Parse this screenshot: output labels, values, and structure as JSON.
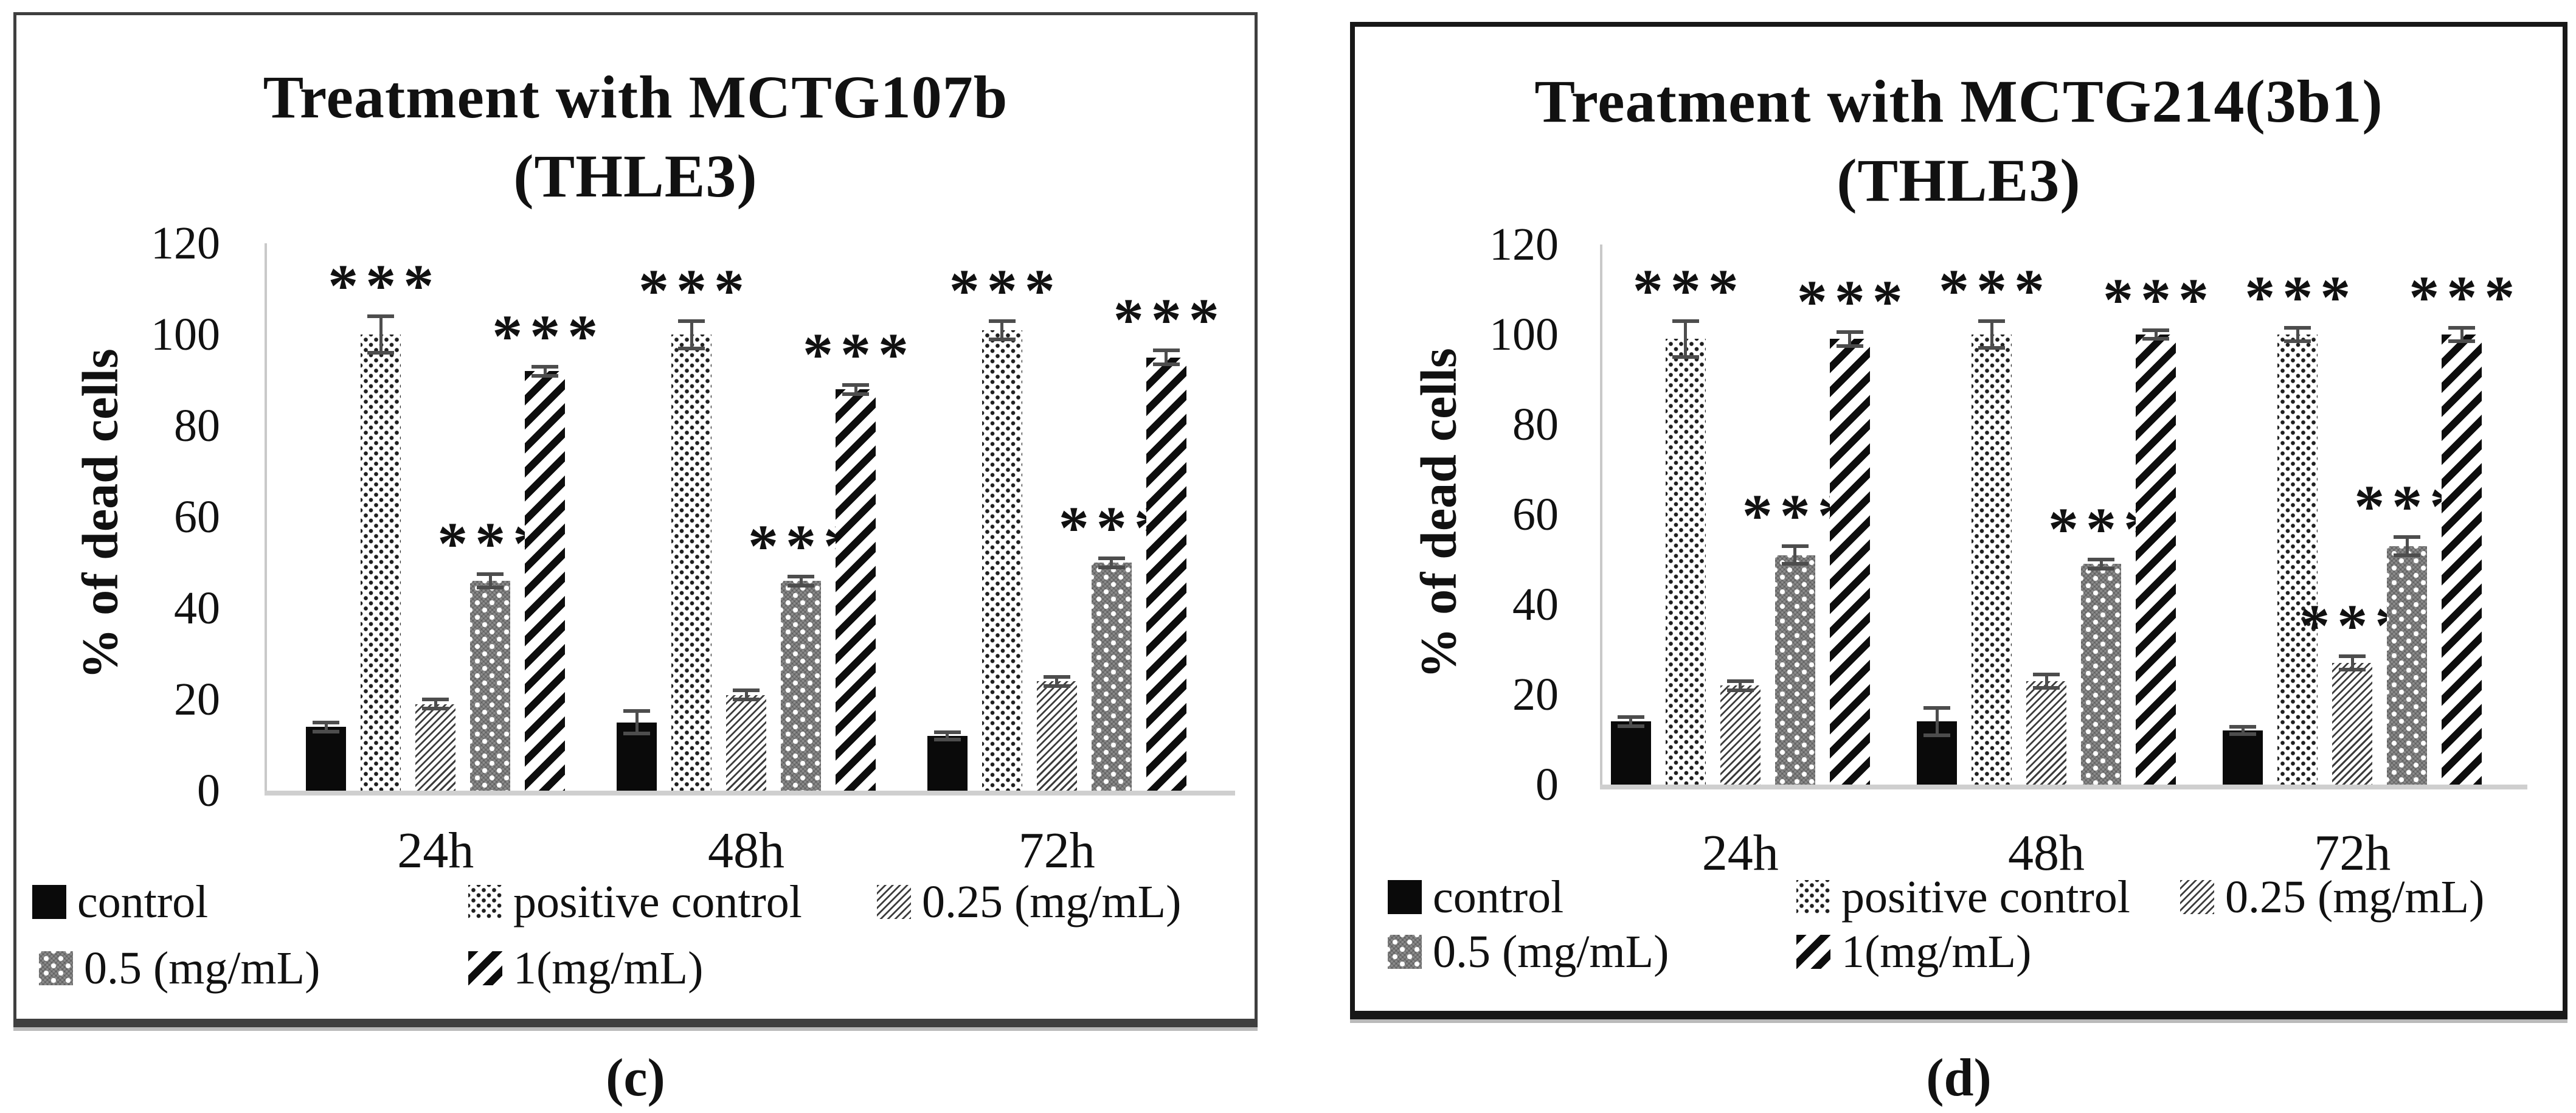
{
  "figure": {
    "panels": [
      {
        "caption": "(c)",
        "title_line1": "Treatment with MCTG107b",
        "title_line2": "(THLE3)",
        "ylabel": "% of dead cells"
      },
      {
        "caption": "(d)",
        "title_line1": "Treatment with MCTG214(3b1)",
        "title_line2": "(THLE3)",
        "ylabel": "% of dead cells"
      }
    ]
  },
  "colors": {
    "bar_black": "#0a0a0a",
    "gray_fill": "#8c8c8c",
    "axis_line": "#c9c9c9",
    "error_bar": "#4d4d4d",
    "text": "#111111"
  },
  "chart_data": [
    {
      "type": "bar",
      "title": "Treatment with MCTG107b (THLE3)",
      "xlabel": "",
      "ylabel": "% of dead cells",
      "ylim": [
        0,
        120
      ],
      "yticks": [
        0,
        20,
        40,
        60,
        80,
        100,
        120
      ],
      "grid": false,
      "legend_position": "bottom",
      "categories": [
        "24h",
        "48h",
        "72h"
      ],
      "series": [
        {
          "name": "control",
          "pattern": "solid",
          "values": [
            14,
            15,
            12
          ],
          "errors": [
            1,
            2.5,
            0.8
          ],
          "significance": [
            "",
            "",
            ""
          ]
        },
        {
          "name": "positive control",
          "pattern": "dots",
          "values": [
            100,
            100,
            101
          ],
          "errors": [
            4,
            3,
            2
          ],
          "significance": [
            "***",
            "***",
            "***"
          ]
        },
        {
          "name": "0.25 (mg/mL)",
          "pattern": "hatch",
          "values": [
            19,
            21,
            24
          ],
          "errors": [
            1,
            1,
            1
          ],
          "significance": [
            "",
            "",
            ""
          ]
        },
        {
          "name": "0.5 (mg/mL)",
          "pattern": "gray",
          "values": [
            46,
            46,
            50
          ],
          "errors": [
            1.5,
            1,
            1
          ],
          "significance": [
            "***",
            "***",
            "***"
          ]
        },
        {
          "name": "1(mg/mL)",
          "pattern": "stripes",
          "values": [
            92,
            88,
            95
          ],
          "errors": [
            1,
            1,
            1.5
          ],
          "significance": [
            "***",
            "***",
            "***"
          ]
        }
      ]
    },
    {
      "type": "bar",
      "title": "Treatment with MCTG214(3b1) (THLE3)",
      "xlabel": "",
      "ylabel": "% of dead cells",
      "ylim": [
        0,
        120
      ],
      "yticks": [
        0,
        20,
        40,
        60,
        80,
        100,
        120
      ],
      "grid": false,
      "legend_position": "bottom",
      "categories": [
        "24h",
        "48h",
        "72h"
      ],
      "series": [
        {
          "name": "control",
          "pattern": "solid",
          "values": [
            14,
            14,
            12
          ],
          "errors": [
            1,
            3,
            0.8
          ],
          "significance": [
            "",
            "",
            ""
          ]
        },
        {
          "name": "positive control",
          "pattern": "dots",
          "values": [
            99,
            100,
            100
          ],
          "errors": [
            4,
            3,
            1.5
          ],
          "significance": [
            "***",
            "***",
            "***"
          ]
        },
        {
          "name": "0.25 (mg/mL)",
          "pattern": "hatch",
          "values": [
            22,
            23,
            27
          ],
          "errors": [
            1,
            1.5,
            1.5
          ],
          "significance": [
            "",
            "",
            "***"
          ]
        },
        {
          "name": "0.5 (mg/mL)",
          "pattern": "gray",
          "values": [
            51,
            49,
            53
          ],
          "errors": [
            2,
            1,
            2
          ],
          "significance": [
            "***",
            "***",
            "***"
          ]
        },
        {
          "name": "1(mg/mL)",
          "pattern": "stripes",
          "values": [
            99,
            100,
            100
          ],
          "errors": [
            1.5,
            1,
            1.5
          ],
          "significance": [
            "***",
            "***",
            "***"
          ]
        }
      ]
    }
  ]
}
